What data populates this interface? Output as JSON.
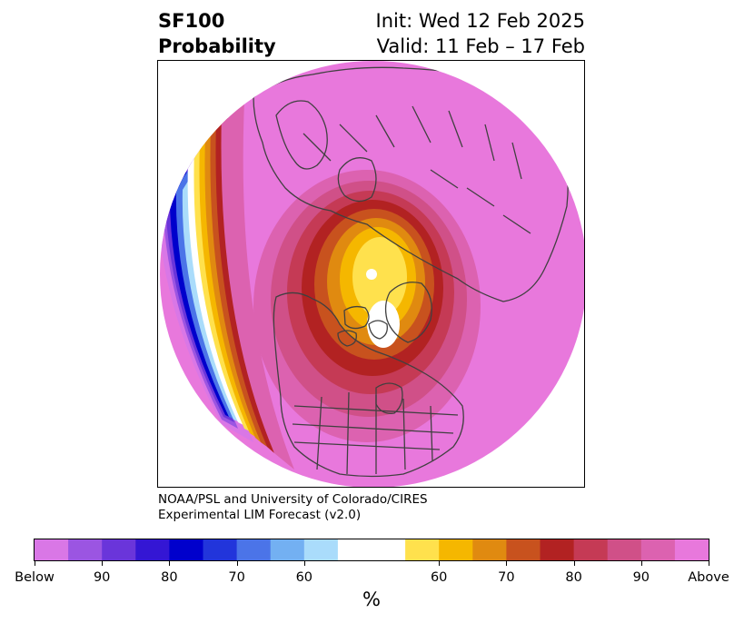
{
  "title": {
    "left_line1": "SF100",
    "left_line2": "Probability",
    "right_line1": "Init: Wed 12 Feb 2025",
    "right_line2": "Valid: 11 Feb – 17 Feb"
  },
  "credit": {
    "line1": "NOAA/PSL and University of Colorado/CIRES",
    "line2": "Experimental LIM Forecast (v2.0)"
  },
  "colorbar": {
    "label": "%",
    "colors": [
      "#d977e6",
      "#9b55e2",
      "#6a35da",
      "#3416d4",
      "#0000cc",
      "#2235db",
      "#4b74e8",
      "#73b0f2",
      "#aadcfb",
      "#ffffff",
      "#ffffff",
      "#ffe14d",
      "#f5b700",
      "#e08a10",
      "#c8521e",
      "#b22222",
      "#c53a55",
      "#d05088",
      "#dc62b0",
      "#e878dc"
    ],
    "ticks": [
      "Below",
      "90",
      "80",
      "70",
      "60",
      "60",
      "70",
      "80",
      "90",
      "Above"
    ]
  },
  "map_colors": {
    "ocean_above": "#e878dc",
    "above_90": "#dc62b0",
    "above_80": "#d05088",
    "above_70": "#c53a55",
    "above_60": "#b22222",
    "mid_1": "#c8521e",
    "mid_2": "#e08a10",
    "mid_3": "#f5b700",
    "mid_4": "#ffe14d",
    "neutral": "#ffffff",
    "below_1": "#aadcfb",
    "below_2": "#73b0f2",
    "below_3": "#4b74e8",
    "below_4": "#2235db",
    "below_5": "#0000cc",
    "below_6": "#3416d4",
    "below_7": "#6a35da",
    "below_8": "#9b55e2",
    "below_9": "#d977e6",
    "coastline": "#404040"
  }
}
